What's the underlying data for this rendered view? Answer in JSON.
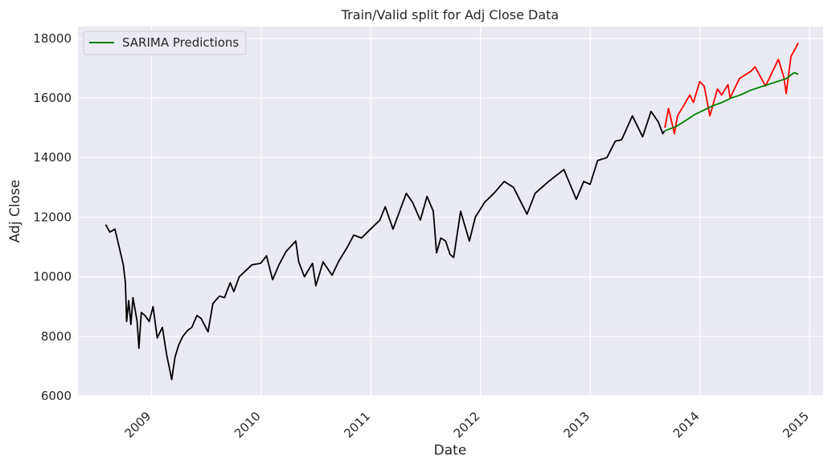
{
  "chart_data": {
    "type": "line",
    "title": "Train/Valid split for Adj Close Data",
    "xlabel": "Date",
    "ylabel": "Adj Close",
    "xlim": [
      "2008-05-01",
      "2015-02-15"
    ],
    "ylim": [
      6000,
      18400
    ],
    "x_ticks": [
      "2009",
      "2010",
      "2011",
      "2012",
      "2013",
      "2014",
      "2015"
    ],
    "y_ticks": [
      6000,
      8000,
      10000,
      12000,
      14000,
      16000,
      18000
    ],
    "grid": true,
    "legend": {
      "placement": "top-left",
      "entries": [
        "SARIMA Predictions"
      ]
    },
    "series": [
      {
        "color": "#000000",
        "points": [
          [
            "2008-08-01",
            11750
          ],
          [
            "2008-08-15",
            11500
          ],
          [
            "2008-09-01",
            11600
          ],
          [
            "2008-09-15",
            11000
          ],
          [
            "2008-09-29",
            10400
          ],
          [
            "2008-10-06",
            9800
          ],
          [
            "2008-10-10",
            8500
          ],
          [
            "2008-10-17",
            9200
          ],
          [
            "2008-10-24",
            8400
          ],
          [
            "2008-10-31",
            9300
          ],
          [
            "2008-11-07",
            8900
          ],
          [
            "2008-11-14",
            8500
          ],
          [
            "2008-11-20",
            7600
          ],
          [
            "2008-11-28",
            8800
          ],
          [
            "2008-12-10",
            8700
          ],
          [
            "2008-12-24",
            8500
          ],
          [
            "2009-01-06",
            9000
          ],
          [
            "2009-01-20",
            7950
          ],
          [
            "2009-02-06",
            8300
          ],
          [
            "2009-02-20",
            7400
          ],
          [
            "2009-03-09",
            6550
          ],
          [
            "2009-03-20",
            7300
          ],
          [
            "2009-04-01",
            7700
          ],
          [
            "2009-04-15",
            8000
          ],
          [
            "2009-05-01",
            8200
          ],
          [
            "2009-05-15",
            8300
          ],
          [
            "2009-06-01",
            8700
          ],
          [
            "2009-06-15",
            8600
          ],
          [
            "2009-07-08",
            8150
          ],
          [
            "2009-07-24",
            9100
          ],
          [
            "2009-08-15",
            9350
          ],
          [
            "2009-09-01",
            9300
          ],
          [
            "2009-09-20",
            9800
          ],
          [
            "2009-10-02",
            9500
          ],
          [
            "2009-10-20",
            10000
          ],
          [
            "2009-11-10",
            10200
          ],
          [
            "2009-12-01",
            10400
          ],
          [
            "2009-12-30",
            10450
          ],
          [
            "2010-01-19",
            10700
          ],
          [
            "2010-02-08",
            9900
          ],
          [
            "2010-03-01",
            10400
          ],
          [
            "2010-03-25",
            10850
          ],
          [
            "2010-04-26",
            11200
          ],
          [
            "2010-05-06",
            10500
          ],
          [
            "2010-05-25",
            10000
          ],
          [
            "2010-06-21",
            10450
          ],
          [
            "2010-07-02",
            9700
          ],
          [
            "2010-07-26",
            10500
          ],
          [
            "2010-08-25",
            10050
          ],
          [
            "2010-09-15",
            10500
          ],
          [
            "2010-10-15",
            11000
          ],
          [
            "2010-11-05",
            11400
          ],
          [
            "2010-12-01",
            11300
          ],
          [
            "2010-12-31",
            11600
          ],
          [
            "2011-01-31",
            11900
          ],
          [
            "2011-02-18",
            12350
          ],
          [
            "2011-03-16",
            11600
          ],
          [
            "2011-04-29",
            12800
          ],
          [
            "2011-05-20",
            12500
          ],
          [
            "2011-06-15",
            11900
          ],
          [
            "2011-07-07",
            12700
          ],
          [
            "2011-07-28",
            12200
          ],
          [
            "2011-08-08",
            10800
          ],
          [
            "2011-08-22",
            11300
          ],
          [
            "2011-09-07",
            11200
          ],
          [
            "2011-09-22",
            10750
          ],
          [
            "2011-10-04",
            10650
          ],
          [
            "2011-10-27",
            12200
          ],
          [
            "2011-11-25",
            11200
          ],
          [
            "2011-12-15",
            12000
          ],
          [
            "2012-01-15",
            12500
          ],
          [
            "2012-02-15",
            12800
          ],
          [
            "2012-03-20",
            13200
          ],
          [
            "2012-04-20",
            13000
          ],
          [
            "2012-06-04",
            12100
          ],
          [
            "2012-07-01",
            12800
          ],
          [
            "2012-08-15",
            13200
          ],
          [
            "2012-10-05",
            13600
          ],
          [
            "2012-11-15",
            12600
          ],
          [
            "2012-12-10",
            13200
          ],
          [
            "2012-12-31",
            13100
          ],
          [
            "2013-01-25",
            13900
          ],
          [
            "2013-02-25",
            14000
          ],
          [
            "2013-03-25",
            14550
          ],
          [
            "2013-04-15",
            14600
          ],
          [
            "2013-05-21",
            15400
          ],
          [
            "2013-06-24",
            14700
          ],
          [
            "2013-07-22",
            15550
          ],
          [
            "2013-08-15",
            15200
          ],
          [
            "2013-08-30",
            14800
          ],
          [
            "2013-09-05",
            14900
          ]
        ]
      },
      {
        "color": "#ff0000",
        "points": [
          [
            "2013-09-06",
            15000
          ],
          [
            "2013-09-18",
            15650
          ],
          [
            "2013-10-08",
            14800
          ],
          [
            "2013-10-18",
            15400
          ],
          [
            "2013-11-08",
            15750
          ],
          [
            "2013-11-28",
            16100
          ],
          [
            "2013-12-10",
            15850
          ],
          [
            "2013-12-31",
            16550
          ],
          [
            "2014-01-15",
            16400
          ],
          [
            "2014-02-03",
            15400
          ],
          [
            "2014-02-28",
            16300
          ],
          [
            "2014-03-14",
            16100
          ],
          [
            "2014-04-04",
            16450
          ],
          [
            "2014-04-11",
            16000
          ],
          [
            "2014-05-12",
            16650
          ],
          [
            "2014-06-20",
            16900
          ],
          [
            "2014-07-03",
            17050
          ],
          [
            "2014-08-07",
            16400
          ],
          [
            "2014-09-19",
            17300
          ],
          [
            "2014-10-07",
            16700
          ],
          [
            "2014-10-15",
            16150
          ],
          [
            "2014-10-31",
            17400
          ],
          [
            "2014-11-14",
            17650
          ],
          [
            "2014-11-24",
            17850
          ]
        ]
      },
      {
        "name": "SARIMA Predictions",
        "color": "#008000",
        "points": [
          [
            "2013-09-06",
            14900
          ],
          [
            "2013-10-15",
            15050
          ],
          [
            "2013-11-15",
            15250
          ],
          [
            "2013-12-15",
            15450
          ],
          [
            "2014-01-15",
            15600
          ],
          [
            "2014-02-15",
            15750
          ],
          [
            "2014-03-15",
            15850
          ],
          [
            "2014-04-15",
            16000
          ],
          [
            "2014-05-15",
            16100
          ],
          [
            "2014-06-15",
            16250
          ],
          [
            "2014-07-15",
            16350
          ],
          [
            "2014-08-15",
            16450
          ],
          [
            "2014-09-15",
            16550
          ],
          [
            "2014-10-15",
            16650
          ],
          [
            "2014-11-10",
            16850
          ],
          [
            "2014-11-24",
            16800
          ]
        ]
      }
    ]
  }
}
